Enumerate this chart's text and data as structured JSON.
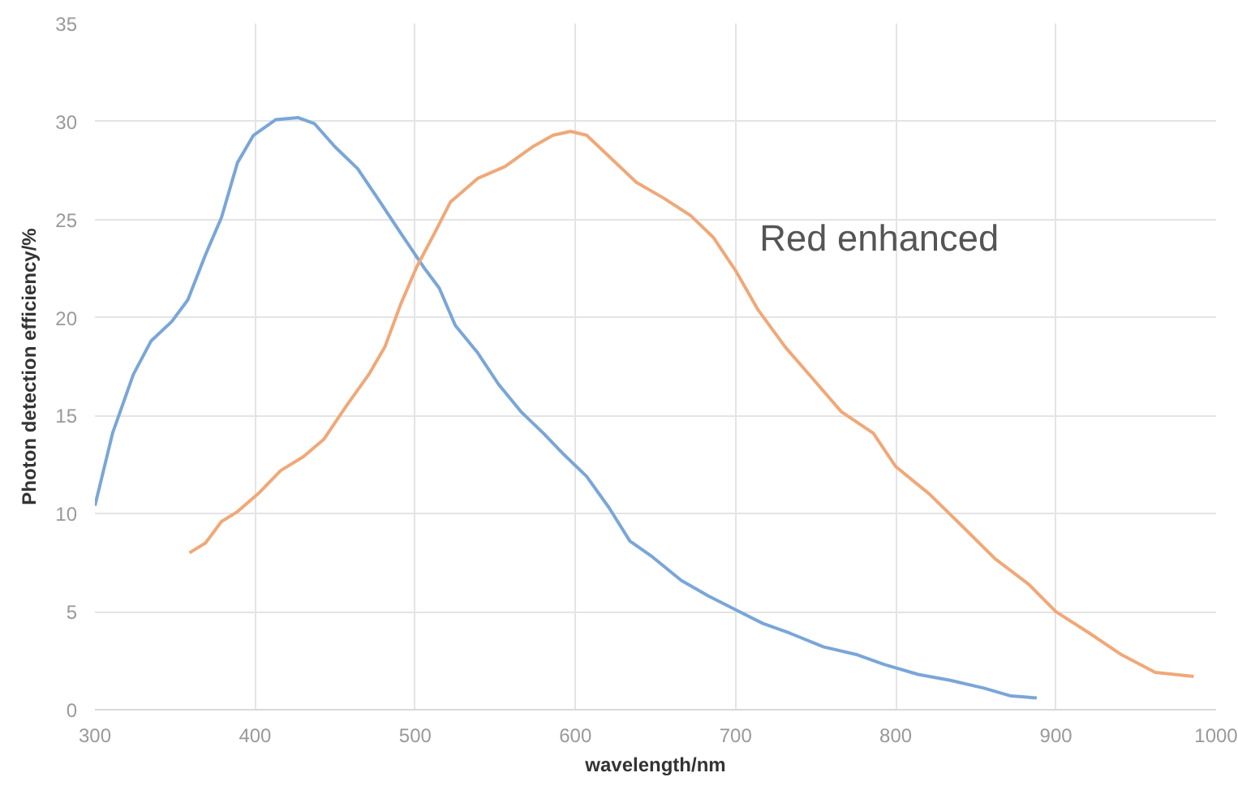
{
  "chart_data": {
    "type": "line",
    "xlabel": "wavelength/nm",
    "ylabel": "Photon detection efficiency/%",
    "xlim": [
      300,
      1000
    ],
    "xticks": [
      300,
      400,
      500,
      600,
      700,
      800,
      900,
      1000
    ],
    "ylim": [
      0,
      35
    ],
    "yticks": [
      0,
      5,
      10,
      15,
      20,
      25,
      30,
      35
    ],
    "grid": true,
    "legend": false,
    "marker": "none",
    "line_style": "solid",
    "series": [
      {
        "color": "#7aa6d8",
        "x": [
          300,
          311,
          324,
          335,
          348,
          358,
          369,
          379,
          389,
          399,
          413,
          427,
          437,
          450,
          464,
          478,
          491,
          505,
          515,
          525,
          539,
          552,
          566,
          580,
          593,
          607,
          621,
          634,
          648,
          666,
          683,
          700,
          717,
          734,
          755,
          776,
          793,
          814,
          834,
          855,
          872,
          888
        ],
        "values": [
          10.4,
          14.1,
          17.1,
          18.8,
          19.8,
          20.9,
          23.2,
          25.1,
          27.9,
          29.3,
          30.1,
          30.2,
          29.9,
          28.7,
          27.6,
          25.9,
          24.3,
          22.6,
          21.5,
          19.6,
          18.2,
          16.6,
          15.2,
          14.1,
          13.0,
          11.9,
          10.3,
          8.6,
          7.8,
          6.6,
          5.8,
          5.1,
          4.4,
          3.9,
          3.2,
          2.8,
          2.3,
          1.8,
          1.5,
          1.1,
          0.7,
          0.6
        ]
      },
      {
        "name": "Red enhanced",
        "color": "#f0a878",
        "x": [
          359,
          369,
          379,
          389,
          403,
          416,
          430,
          443,
          457,
          471,
          481,
          491,
          501,
          512,
          522,
          539,
          556,
          573,
          586,
          597,
          607,
          620,
          638,
          655,
          672,
          686,
          700,
          714,
          731,
          748,
          766,
          786,
          800,
          821,
          841,
          862,
          883,
          900,
          921,
          941,
          962,
          986
        ],
        "values": [
          8.0,
          8.5,
          9.6,
          10.1,
          11.1,
          12.2,
          12.9,
          13.8,
          15.5,
          17.1,
          18.5,
          20.7,
          22.6,
          24.3,
          25.9,
          27.1,
          27.7,
          28.7,
          29.3,
          29.5,
          29.3,
          28.3,
          26.9,
          26.1,
          25.2,
          24.1,
          22.4,
          20.4,
          18.5,
          16.9,
          15.2,
          14.1,
          12.4,
          11.0,
          9.4,
          7.7,
          6.4,
          5.0,
          3.9,
          2.8,
          1.9,
          1.7
        ]
      }
    ]
  }
}
